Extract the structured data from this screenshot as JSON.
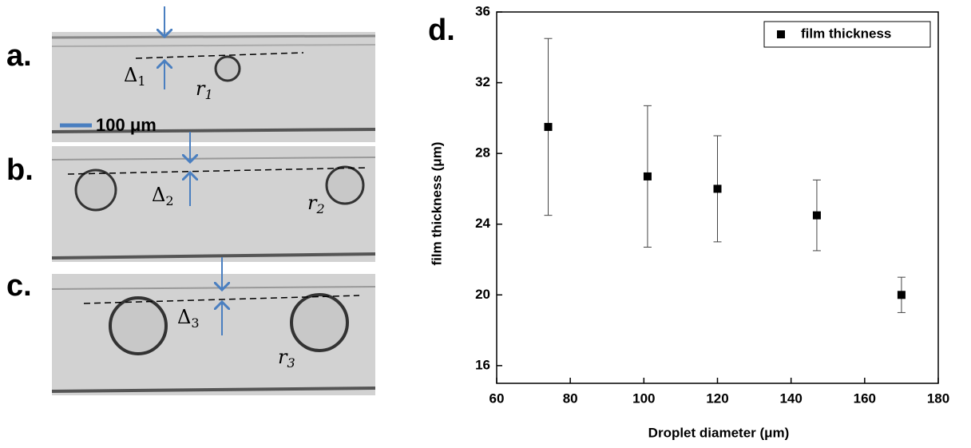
{
  "images": {
    "panels": [
      {
        "label": "a.",
        "gap": {
          "symbol": "Δ",
          "sub": "1"
        },
        "radius": {
          "symbol": "r",
          "sub": "1"
        },
        "scale_bar": "100 μm"
      },
      {
        "label": "b.",
        "gap": {
          "symbol": "Δ",
          "sub": "2"
        },
        "radius": {
          "symbol": "r",
          "sub": "2"
        }
      },
      {
        "label": "c.",
        "gap": {
          "symbol": "Δ",
          "sub": "3"
        },
        "radius": {
          "symbol": "r",
          "sub": "3"
        }
      }
    ]
  },
  "chart_data": {
    "type": "scatter",
    "panel_label": "d.",
    "x_label": "Droplet diameter (μm)",
    "y_label": "film thickness (μm)",
    "series": [
      {
        "name": "film thickness",
        "color": "#000000",
        "x": [
          74,
          101,
          120,
          147,
          170
        ],
        "values": [
          29.5,
          26.7,
          26,
          24.5,
          20
        ],
        "errors": [
          5,
          4,
          3,
          2,
          1
        ]
      }
    ],
    "xlim": [
      60,
      180
    ],
    "xticks": [
      60,
      80,
      100,
      120,
      140,
      160,
      180
    ],
    "ylim": [
      15,
      36
    ],
    "yticks": [
      16,
      20,
      24,
      28,
      32,
      36
    ],
    "legend": "upper right"
  }
}
